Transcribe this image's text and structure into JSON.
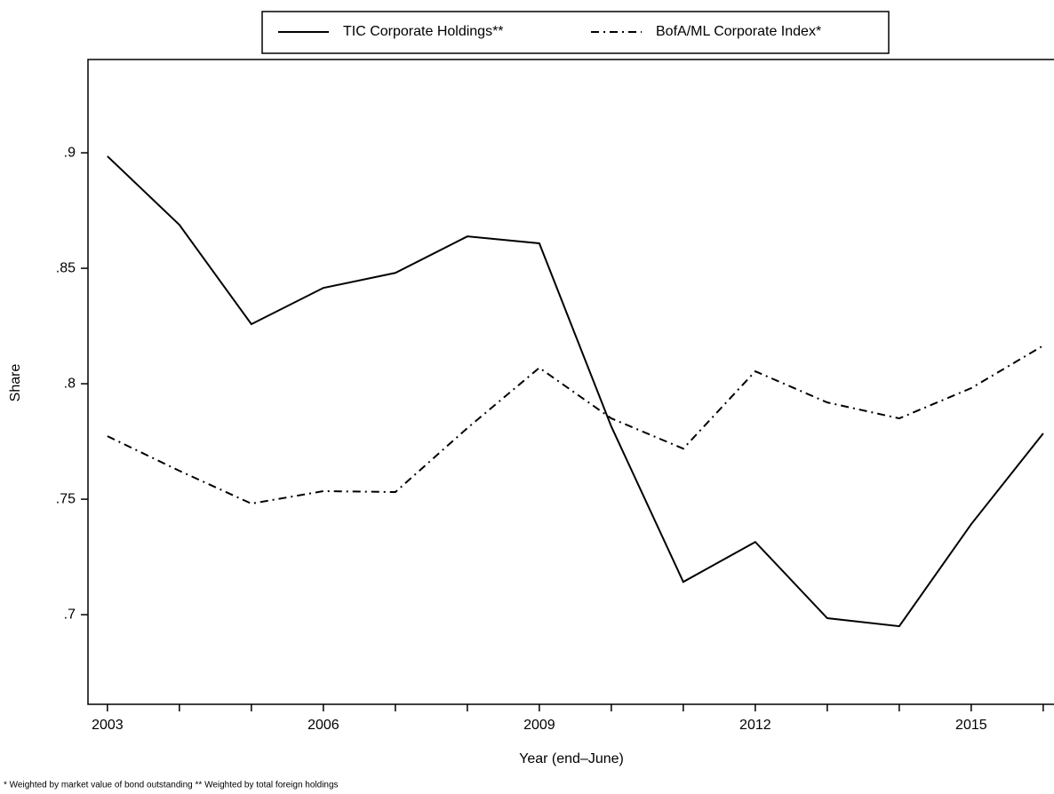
{
  "chart_data": {
    "type": "line",
    "x_label": "Year (end–June)",
    "y_label": "Share",
    "footnote": "* Weighted by market value of bond outstanding ** Weighted by total foreign holdings",
    "x": [
      2003,
      2004,
      2005,
      2006,
      2007,
      2008,
      2009,
      2010,
      2011,
      2012,
      2013,
      2014,
      2015,
      2016
    ],
    "series": [
      {
        "name": "TIC Corporate Holdings**",
        "color": "#000000",
        "dash": "solid",
        "values": [
          0.8985,
          0.8688,
          0.8258,
          0.8415,
          0.848,
          0.8638,
          0.8608,
          0.7815,
          0.7142,
          0.7315,
          0.6985,
          0.695,
          0.7392,
          0.7785
        ]
      },
      {
        "name": "BofA/ML Corporate Index*",
        "color": "#000000",
        "dash": "dashdot",
        "values": [
          0.7773,
          0.7623,
          0.7481,
          0.7535,
          0.7531,
          0.7808,
          0.8069,
          0.785,
          0.7719,
          0.8054,
          0.7919,
          0.785,
          0.7981,
          0.8165
        ]
      }
    ],
    "xlim": [
      2002.73,
      2016.15
    ],
    "xticks": [
      2003,
      2006,
      2009,
      2012,
      2015
    ],
    "xminorticks": [
      2004,
      2005,
      2007,
      2008,
      2010,
      2011,
      2013,
      2014,
      2016
    ],
    "ylim": [
      0.6612,
      0.9404
    ],
    "yticks": [
      {
        "value": 0.7,
        "label": ".7"
      },
      {
        "value": 0.75,
        "label": ".75"
      },
      {
        "value": 0.8,
        "label": ".8"
      },
      {
        "value": 0.85,
        "label": ".85"
      },
      {
        "value": 0.9,
        "label": ".9"
      }
    ],
    "grid": false,
    "legend": "top"
  }
}
